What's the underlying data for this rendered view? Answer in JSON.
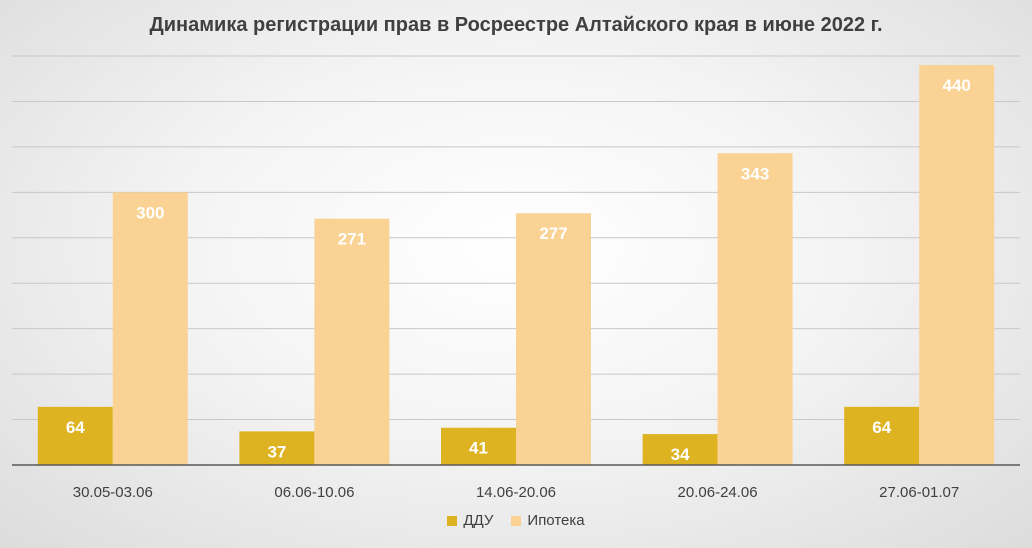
{
  "chart_data": {
    "type": "bar",
    "title": "Динамика регистрации прав в Росреестре Алтайского края в июне 2022 г.",
    "xlabel": "",
    "ylabel": "",
    "categories": [
      "30.05-03.06",
      "06.06-10.06",
      "14.06-20.06",
      "20.06-24.06",
      "27.06-01.07"
    ],
    "series": [
      {
        "name": "ДДУ",
        "values": [
          64,
          37,
          41,
          34,
          64
        ],
        "color": "#DDB321"
      },
      {
        "name": "Ипотека",
        "values": [
          300,
          271,
          277,
          343,
          440
        ],
        "color": "#FAD293"
      }
    ],
    "ylim": [
      0,
      450
    ],
    "grid": true,
    "legend_position": "bottom",
    "data_labels": true
  }
}
